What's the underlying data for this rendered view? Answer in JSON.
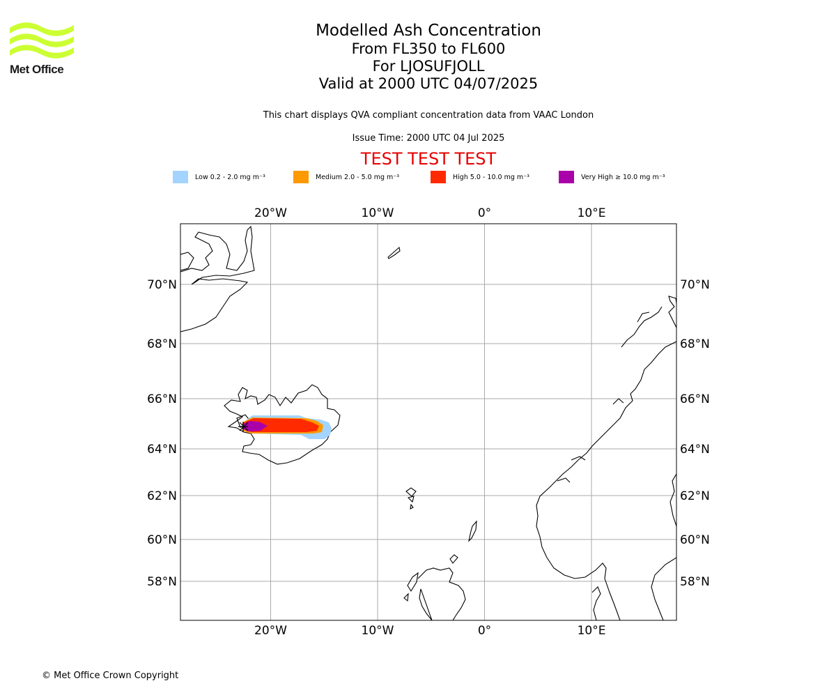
{
  "logo": {
    "text": "Met Office",
    "color": "#ccff33"
  },
  "title": {
    "line1": "Modelled Ash Concentration",
    "line2": "From FL350 to FL600",
    "line3": "For LJOSUFJOLL",
    "line4": "Valid at 2000 UTC 04/07/2025"
  },
  "subtitle": "This chart displays QVA compliant concentration data from VAAC London",
  "issue_time": "Issue Time: 2000 UTC 04 Jul 2025",
  "test_banner": "TEST TEST TEST",
  "legend": [
    {
      "label": "Low 0.2 - 2.0 mg m⁻³",
      "color": "#a3d4ff"
    },
    {
      "label": "Medium 2.0 - 5.0 mg m⁻³",
      "color": "#ff9900"
    },
    {
      "label": "High 5.0 - 10.0 mg m⁻³",
      "color": "#ff2a00"
    },
    {
      "label": "Very High ≥ 10.0 mg m⁻³",
      "color": "#aa00aa"
    }
  ],
  "map": {
    "lon_ticks": [
      {
        "value": -20,
        "label": "20°W"
      },
      {
        "value": -10,
        "label": "10°W"
      },
      {
        "value": 0,
        "label": "0°"
      },
      {
        "value": 10,
        "label": "10°E"
      }
    ],
    "lat_ticks": [
      {
        "value": 70,
        "label": "70°N"
      },
      {
        "value": 68,
        "label": "68°N"
      },
      {
        "value": 66,
        "label": "66°N"
      },
      {
        "value": 64,
        "label": "64°N"
      },
      {
        "value": 62,
        "label": "62°N"
      },
      {
        "value": 60,
        "label": "60°N"
      },
      {
        "value": 58,
        "label": "58°N"
      }
    ],
    "grid": true,
    "grid_color": "#aaaaaa"
  },
  "copyright": "© Met Office Crown Copyright"
}
